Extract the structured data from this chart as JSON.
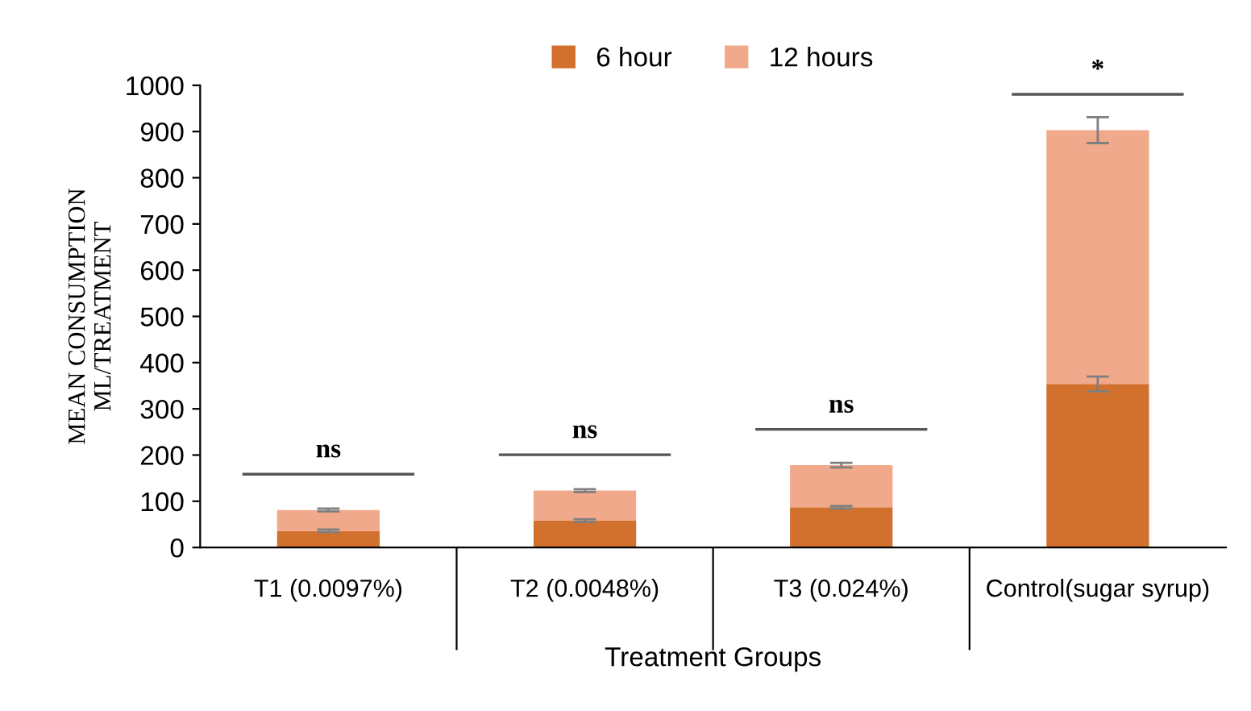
{
  "chart_data": {
    "type": "bar",
    "stacked": true,
    "categories": [
      "T1 (0.0097%)",
      "T2 (0.0048%)",
      "T3 (0.024%)",
      "Control(sugar syrup)"
    ],
    "series": [
      {
        "name": "6 hour",
        "color": "#d2702d",
        "values": [
          36,
          58,
          87,
          354
        ],
        "errors": [
          3,
          3,
          3,
          16
        ]
      },
      {
        "name": "12 hours",
        "color": "#f1a98b",
        "values": [
          45,
          65,
          91,
          549
        ],
        "errors": [
          3,
          3,
          5,
          28
        ]
      }
    ],
    "ylim": [
      0,
      1000
    ],
    "yticks": [
      0,
      100,
      200,
      300,
      400,
      500,
      600,
      700,
      800,
      900,
      1000
    ],
    "xlabel": "Treatment Groups",
    "ylabel": "MEAN CONSUMPTION\nML/TREATMENT",
    "legend": "top",
    "grid": false,
    "annotations": [
      "ns",
      "ns",
      "ns",
      "*"
    ]
  }
}
